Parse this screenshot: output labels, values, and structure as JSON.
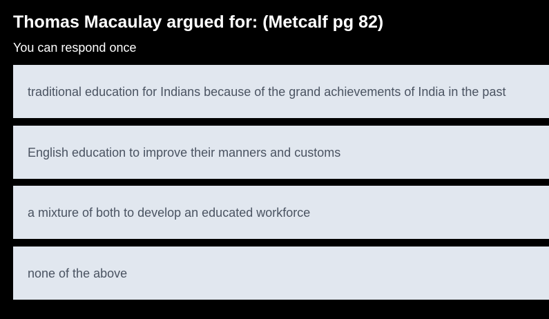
{
  "poll": {
    "question": "Thomas Macaulay argued for: (Metcalf pg 82)",
    "hint": "You can respond once",
    "options": [
      {
        "label": "traditional education for Indians because of the grand achievements of India in the past"
      },
      {
        "label": "English education to improve their manners and customs"
      },
      {
        "label": "a mixture of both to develop an educated workforce"
      },
      {
        "label": "none of the above"
      }
    ]
  },
  "colors": {
    "background": "#000000",
    "question_text": "#ffffff",
    "option_background": "#e1e7ef",
    "option_text": "#4a5361"
  }
}
